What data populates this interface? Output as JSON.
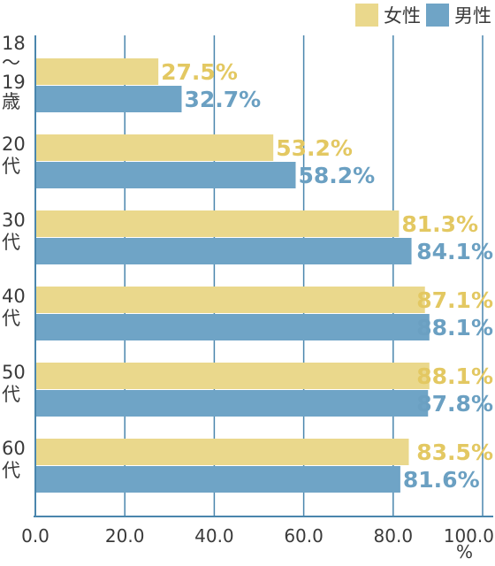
{
  "chart_data": {
    "type": "bar",
    "orientation": "horizontal",
    "categories": [
      "18～19歳",
      "20代",
      "30代",
      "40代",
      "50代",
      "60代"
    ],
    "category_label_lines": [
      [
        "18",
        "～",
        "19",
        "歳"
      ],
      [
        "20",
        "代"
      ],
      [
        "30",
        "代"
      ],
      [
        "40",
        "代"
      ],
      [
        "50",
        "代"
      ],
      [
        "60",
        "代"
      ]
    ],
    "series": [
      {
        "name": "女性",
        "color": "#ead88c",
        "label_color": "#e3c862",
        "values": [
          27.5,
          53.2,
          81.3,
          87.1,
          88.1,
          83.5
        ],
        "labels": [
          "27.5%",
          "53.2%",
          "81.3%",
          "87.1%",
          "88.1%",
          "83.5%"
        ]
      },
      {
        "name": "男性",
        "color": "#6fa4c6",
        "label_color": "#6ba0c2",
        "values": [
          32.7,
          58.2,
          84.1,
          88.1,
          87.8,
          81.6
        ],
        "labels": [
          "32.7%",
          "58.2%",
          "84.1%",
          "88.1%",
          "87.8%",
          "81.6%"
        ]
      }
    ],
    "xlim": [
      0,
      100
    ],
    "x_ticks": [
      "0.0",
      "20.0",
      "40.0",
      "60.0",
      "80.0",
      "100.0"
    ],
    "x_tick_values": [
      0,
      20,
      40,
      60,
      80,
      100
    ],
    "x_unit": "%",
    "grid": true,
    "legend_position": "top-right",
    "axis_color": "#4a86ad"
  }
}
